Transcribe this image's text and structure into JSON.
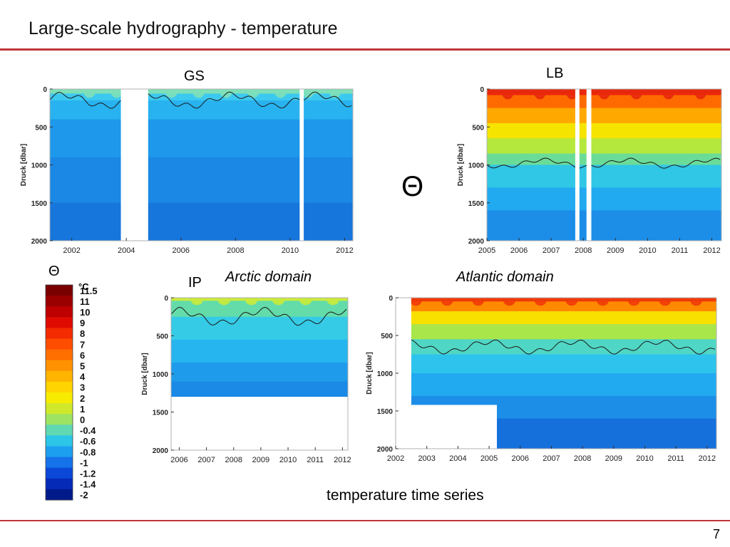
{
  "slide": {
    "title": "Large-scale hydrography - temperature",
    "page_number": "7",
    "caption": "temperature time series",
    "theta_symbol": "Θ",
    "arctic_label": "Arctic  domain",
    "atlantic_label": "Atlantic domain",
    "accent_color": "#c0373a"
  },
  "colorbar": {
    "symbol": "Θ",
    "unit": "°C",
    "levels": [
      "11.5",
      "11",
      "10",
      "9",
      "8",
      "7",
      "6",
      "5",
      "4",
      "3",
      "2",
      "1",
      "0",
      "-0.4",
      "-0.6",
      "-0.8",
      "-1",
      "-1.2",
      "-1.4",
      "-2"
    ],
    "colors": [
      "#7a0000",
      "#9a0000",
      "#bd0000",
      "#df0b00",
      "#f42a00",
      "#ff4d00",
      "#ff6f00",
      "#ff9200",
      "#ffb400",
      "#ffd400",
      "#f7ec00",
      "#cfe92a",
      "#9ee462",
      "#5fd8b3",
      "#2bc6e8",
      "#1d9ff0",
      "#1672ea",
      "#0c48d8",
      "#052ab8",
      "#001a8a"
    ]
  },
  "chart_data": [
    {
      "id": "GS",
      "type": "heatmap",
      "title": "GS",
      "ylabel": "Druck [dbar]",
      "xlabel": "",
      "xlim": [
        2001.2,
        2012.3
      ],
      "ylim": [
        2000,
        0
      ],
      "x_ticks": [
        "2002",
        "2004",
        "2006",
        "2008",
        "2010",
        "2012"
      ],
      "y_ticks": [
        "0",
        "500",
        "1000",
        "1500",
        "2000"
      ],
      "gaps": [
        [
          2003.8,
          2004.8
        ],
        [
          2010.35,
          2010.5
        ]
      ],
      "contour_depth_dbar": 150,
      "surface_warm_layer_dbar": 60,
      "bands": [
        {
          "to": 60,
          "color": "#7ee0b8"
        },
        {
          "to": 150,
          "color": "#3cc9f0"
        },
        {
          "to": 400,
          "color": "#28b2ef"
        },
        {
          "to": 900,
          "color": "#1d98ea"
        },
        {
          "to": 1500,
          "color": "#1a88e4"
        },
        {
          "to": 2000,
          "color": "#1676dc"
        }
      ]
    },
    {
      "id": "LB",
      "type": "heatmap",
      "title": "LB",
      "ylabel": "Druck [dbar]",
      "xlabel": "",
      "xlim": [
        2005,
        2012.3
      ],
      "ylim": [
        2000,
        0
      ],
      "x_ticks": [
        "2005",
        "2006",
        "2007",
        "2008",
        "2009",
        "2010",
        "2011",
        "2012"
      ],
      "y_ticks": [
        "0",
        "500",
        "1000",
        "1500",
        "2000"
      ],
      "gaps": [
        [
          2007.75,
          2007.88
        ],
        [
          2008.1,
          2008.25
        ]
      ],
      "contour_depth_dbar": 980,
      "surface_warm_layer_dbar": 80,
      "bands": [
        {
          "to": 80,
          "color": "#e8280c"
        },
        {
          "to": 250,
          "color": "#ff6a00"
        },
        {
          "to": 450,
          "color": "#ffa800"
        },
        {
          "to": 650,
          "color": "#f5e300"
        },
        {
          "to": 850,
          "color": "#b5e83c"
        },
        {
          "to": 1000,
          "color": "#6bdc98"
        },
        {
          "to": 1300,
          "color": "#30c6e6"
        },
        {
          "to": 1600,
          "color": "#22aaf0"
        },
        {
          "to": 2000,
          "color": "#1c8ee8"
        }
      ]
    },
    {
      "id": "IP",
      "type": "heatmap",
      "title": "IP",
      "ylabel": "Druck [dbar]",
      "xlabel": "",
      "xlim": [
        2005.7,
        2012.2
      ],
      "ylim": [
        2000,
        0
      ],
      "x_ticks": [
        "2006",
        "2007",
        "2008",
        "2009",
        "2010",
        "2011",
        "2012"
      ],
      "y_ticks": [
        "0",
        "500",
        "1000",
        "1500",
        "2000"
      ],
      "gaps": [],
      "data_max_depth_dbar": 1300,
      "contour_depth_dbar": 250,
      "surface_warm_layer_dbar": 40,
      "bands": [
        {
          "to": 40,
          "color": "#c9ea3a"
        },
        {
          "to": 250,
          "color": "#63dcaa"
        },
        {
          "to": 550,
          "color": "#35cbe6"
        },
        {
          "to": 850,
          "color": "#27b5ef"
        },
        {
          "to": 1100,
          "color": "#1e9ceb"
        },
        {
          "to": 1300,
          "color": "#1a8ae6"
        }
      ]
    },
    {
      "id": "Atlantic",
      "type": "heatmap",
      "title": "",
      "ylabel": "Druck [dbar]",
      "xlabel": "",
      "xlim": [
        2002,
        2012.3
      ],
      "ylim": [
        2000,
        0
      ],
      "x_ticks": [
        "2002",
        "2003",
        "2004",
        "2005",
        "2006",
        "2007",
        "2008",
        "2009",
        "2010",
        "2011",
        "2012"
      ],
      "y_ticks": [
        "0",
        "500",
        "1000",
        "1500",
        "2000"
      ],
      "gaps": [],
      "data_start": 2002.5,
      "deep_data_start": 2005.25,
      "contour_depth_dbar": 650,
      "surface_warm_layer_dbar": 50,
      "bands": [
        {
          "to": 50,
          "color": "#f03a08"
        },
        {
          "to": 180,
          "color": "#ff8a00"
        },
        {
          "to": 350,
          "color": "#f8e000"
        },
        {
          "to": 550,
          "color": "#a9e64a"
        },
        {
          "to": 750,
          "color": "#50d6c4"
        },
        {
          "to": 1000,
          "color": "#2ec3ec"
        },
        {
          "to": 1300,
          "color": "#22aaf0"
        },
        {
          "to": 1600,
          "color": "#1c8ee8"
        },
        {
          "to": 2000,
          "color": "#1570dc"
        }
      ]
    }
  ]
}
